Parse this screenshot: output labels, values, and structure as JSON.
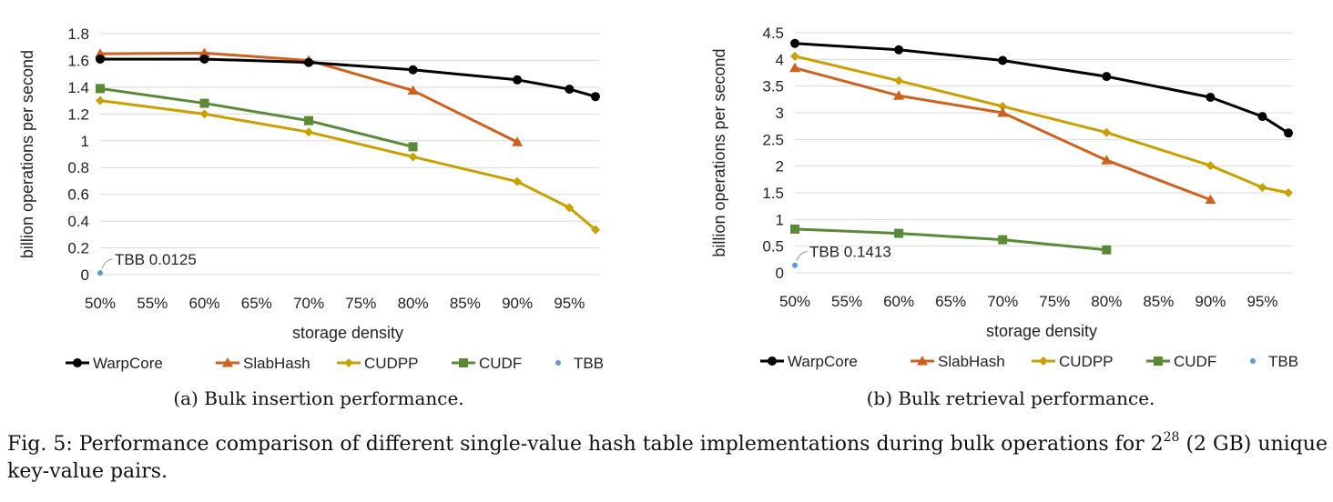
{
  "caption": {
    "prefix": "Fig. 5: Performance comparison of different single-value hash table implementations during bulk operations for 2",
    "exponent": "28",
    "suffix": "(2 GB) unique key-value pairs."
  },
  "colors": {
    "WarpCore": "#000000",
    "SlabHash": "#d0601e",
    "CUDPP": "#c9a000",
    "CUDF": "#5a8a38",
    "TBB": "#5b9bd5",
    "grid": "#d9d9d9"
  },
  "chart_data": [
    {
      "type": "line",
      "title": "",
      "subcaption": "(a) Bulk insertion performance.",
      "xlabel": "storage density",
      "ylabel": "billion operations per second",
      "x_ticks": [
        "50%",
        "55%",
        "60%",
        "65%",
        "70%",
        "75%",
        "80%",
        "85%",
        "90%",
        "95%"
      ],
      "xlim": [
        50,
        97.5
      ],
      "y_ticks": [
        "0",
        "0.2",
        "0.4",
        "0.6",
        "0.8",
        "1",
        "1.2",
        "1.4",
        "1.6",
        "1.8"
      ],
      "ylim": [
        0,
        1.8
      ],
      "grid": true,
      "legend": "bottom",
      "series": [
        {
          "name": "WarpCore",
          "marker": "circle",
          "x": [
            50,
            60,
            70,
            80,
            90,
            95,
            97.5
          ],
          "values": [
            1.61,
            1.61,
            1.585,
            1.53,
            1.455,
            1.385,
            1.33
          ]
        },
        {
          "name": "SlabHash",
          "marker": "triangle",
          "x": [
            50,
            60,
            70,
            80,
            90
          ],
          "values": [
            1.65,
            1.655,
            1.6,
            1.375,
            0.99
          ]
        },
        {
          "name": "CUDPP",
          "marker": "diamond",
          "x": [
            50,
            60,
            70,
            80,
            90,
            95,
            97.5
          ],
          "values": [
            1.3,
            1.2,
            1.065,
            0.88,
            0.695,
            0.5,
            0.335
          ]
        },
        {
          "name": "CUDF",
          "marker": "square",
          "x": [
            50,
            60,
            70,
            80
          ],
          "values": [
            1.39,
            1.28,
            1.15,
            0.955
          ]
        },
        {
          "name": "TBB",
          "marker": "dot",
          "x": [
            50
          ],
          "values": [
            0.0125
          ]
        }
      ],
      "annotations": [
        {
          "series": "TBB",
          "text": "TBB 0.0125"
        }
      ]
    },
    {
      "type": "line",
      "title": "",
      "subcaption": "(b) Bulk retrieval performance.",
      "xlabel": "storage density",
      "ylabel": "billion operations per second",
      "x_ticks": [
        "50%",
        "55%",
        "60%",
        "65%",
        "70%",
        "75%",
        "80%",
        "85%",
        "90%",
        "95%"
      ],
      "xlim": [
        50,
        97.5
      ],
      "y_ticks": [
        "0",
        "0.5",
        "1",
        "1.5",
        "2",
        "2.5",
        "3",
        "3.5",
        "4",
        "4.5"
      ],
      "ylim": [
        0,
        4.5
      ],
      "grid": true,
      "legend": "bottom",
      "series": [
        {
          "name": "WarpCore",
          "marker": "circle",
          "x": [
            50,
            60,
            70,
            80,
            90,
            95,
            97.5
          ],
          "values": [
            4.3,
            4.18,
            3.98,
            3.68,
            3.29,
            2.93,
            2.62
          ]
        },
        {
          "name": "SlabHash",
          "marker": "triangle",
          "x": [
            50,
            60,
            70,
            80,
            90
          ],
          "values": [
            3.84,
            3.32,
            3.0,
            2.11,
            1.37
          ]
        },
        {
          "name": "CUDPP",
          "marker": "diamond",
          "x": [
            50,
            60,
            70,
            80,
            90,
            95,
            97.5
          ],
          "values": [
            4.06,
            3.6,
            3.12,
            2.63,
            2.01,
            1.6,
            1.5
          ]
        },
        {
          "name": "CUDF",
          "marker": "square",
          "x": [
            50,
            60,
            70,
            80
          ],
          "values": [
            0.82,
            0.74,
            0.62,
            0.43
          ]
        },
        {
          "name": "TBB",
          "marker": "dot",
          "x": [
            50
          ],
          "values": [
            0.1413
          ]
        }
      ],
      "annotations": [
        {
          "series": "TBB",
          "text": "TBB 0.1413"
        }
      ]
    }
  ]
}
